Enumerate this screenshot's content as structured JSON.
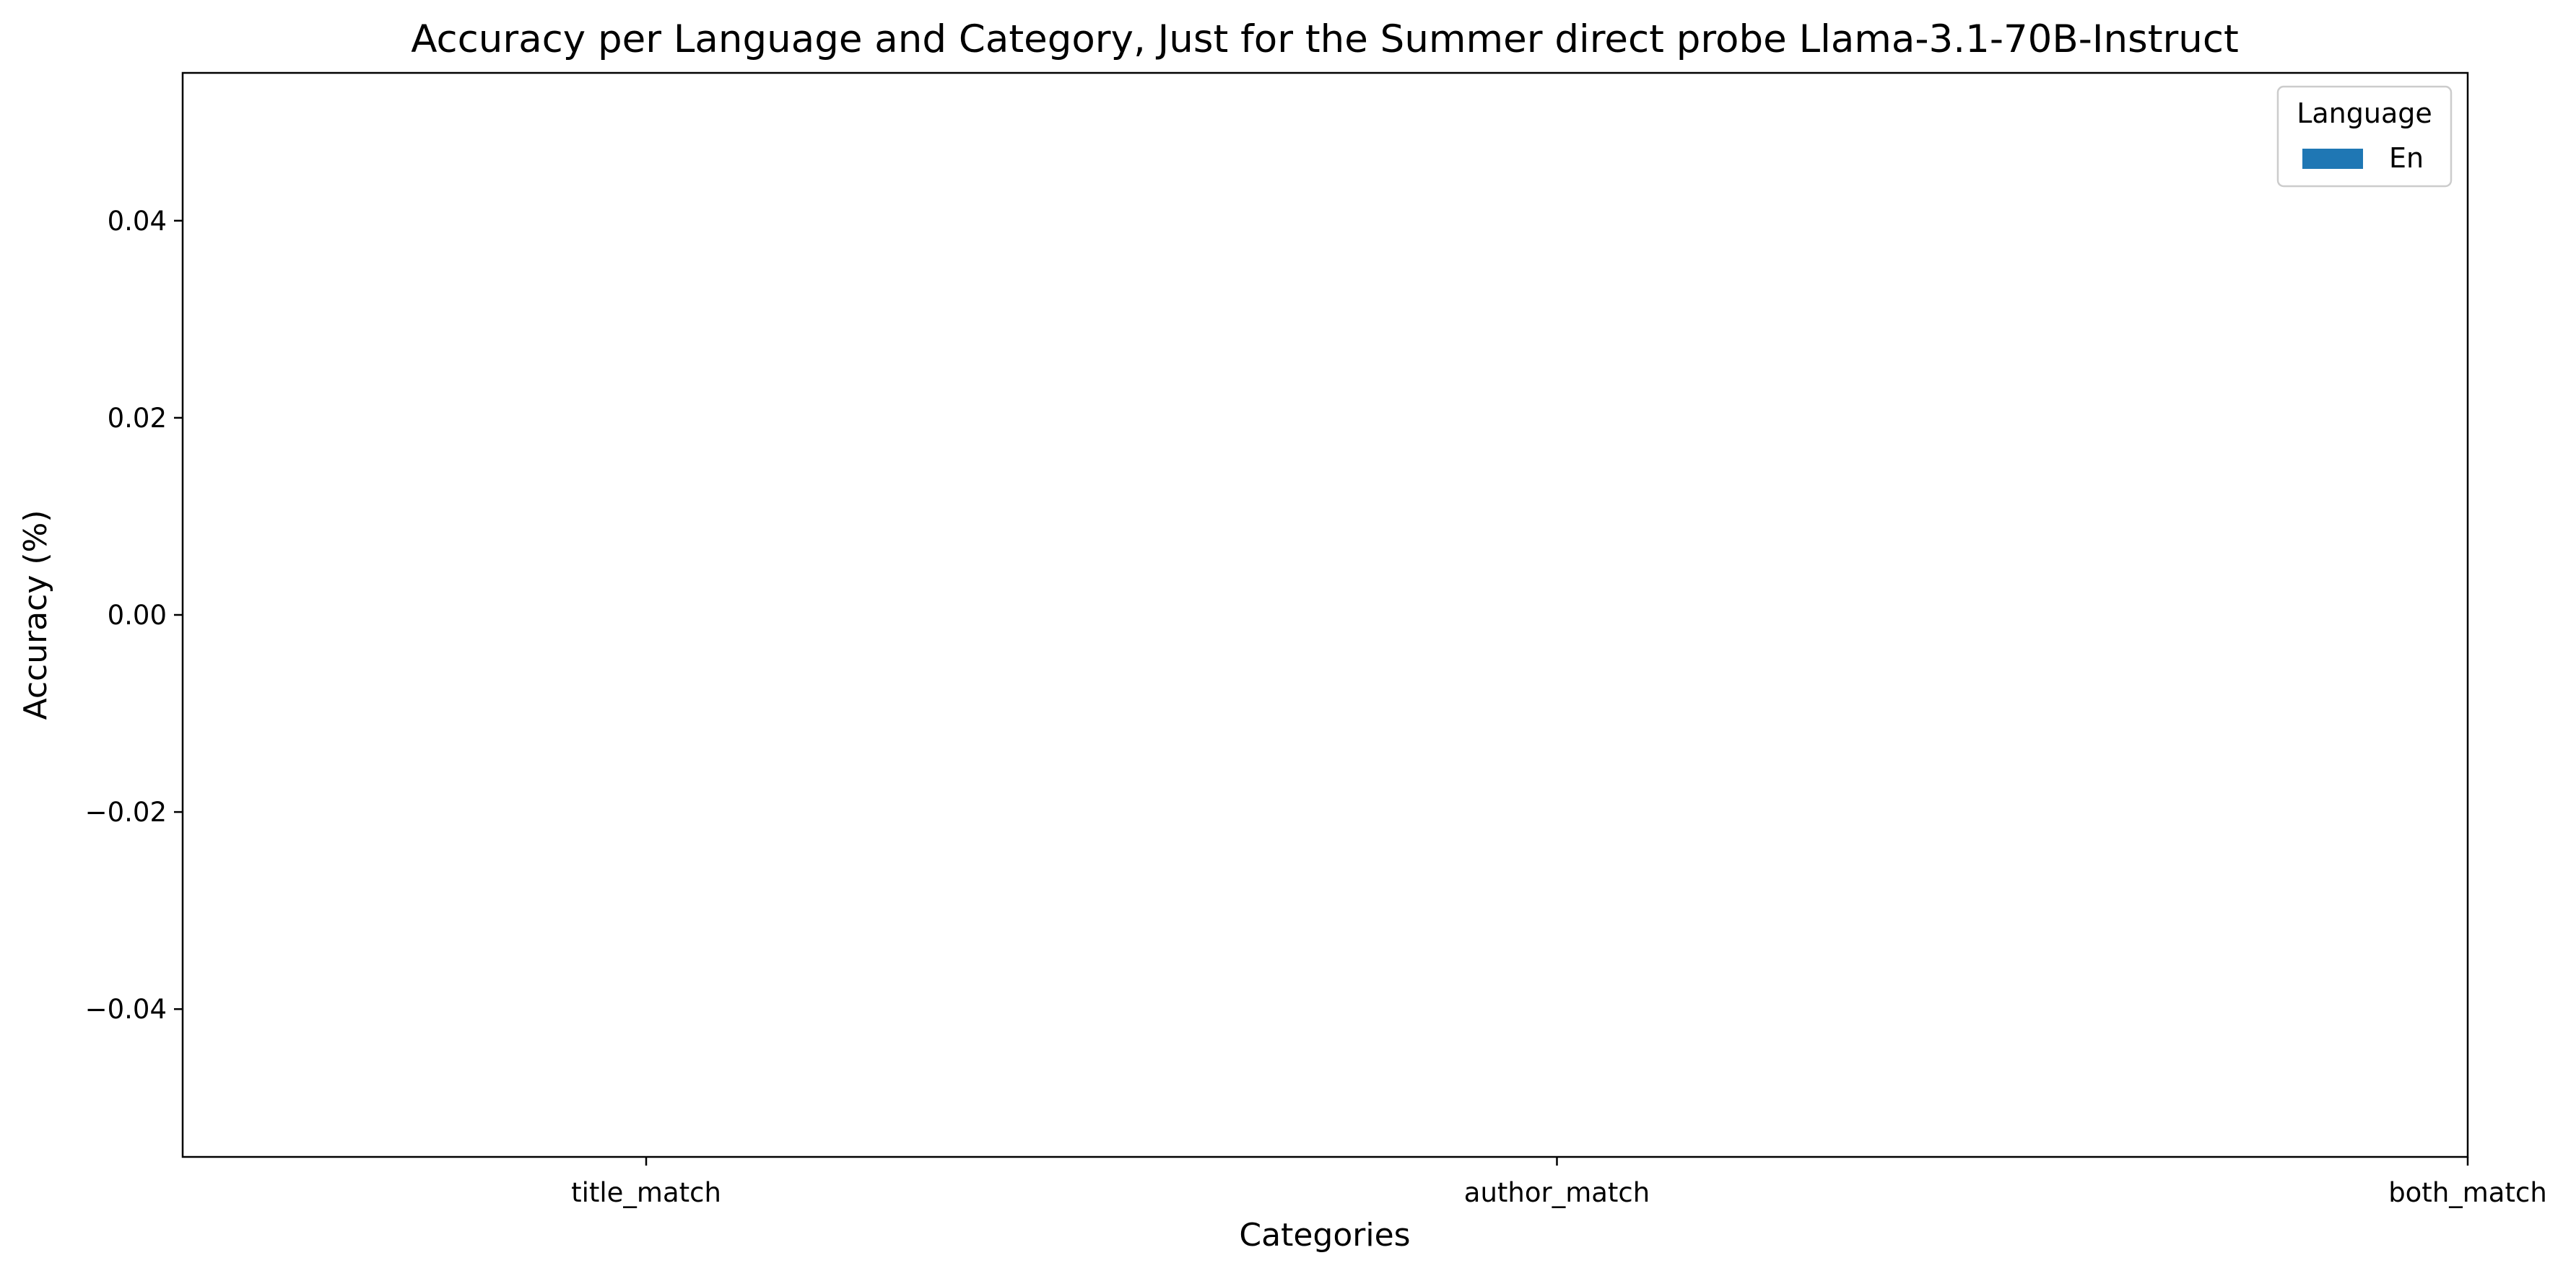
{
  "chart_data": {
    "type": "bar",
    "title": "Accuracy per Language and Category, Just for the Summer direct probe Llama-3.1-70B-Instruct",
    "xlabel": "Categories",
    "ylabel": "Accuracy (%)",
    "categories": [
      "title_match",
      "author_match",
      "both_match"
    ],
    "series": [
      {
        "name": "En",
        "values": [
          0,
          0,
          0
        ],
        "color": "#1f77b4"
      }
    ],
    "ylim": [
      -0.055,
      0.055
    ],
    "yticks": [
      -0.04,
      -0.02,
      0.0,
      0.02,
      0.04
    ],
    "ytick_labels": [
      "−0.04",
      "−0.02",
      "0.00",
      "0.02",
      "0.04"
    ],
    "legend": {
      "title": "Language",
      "position": "top-right"
    },
    "grid": false
  }
}
